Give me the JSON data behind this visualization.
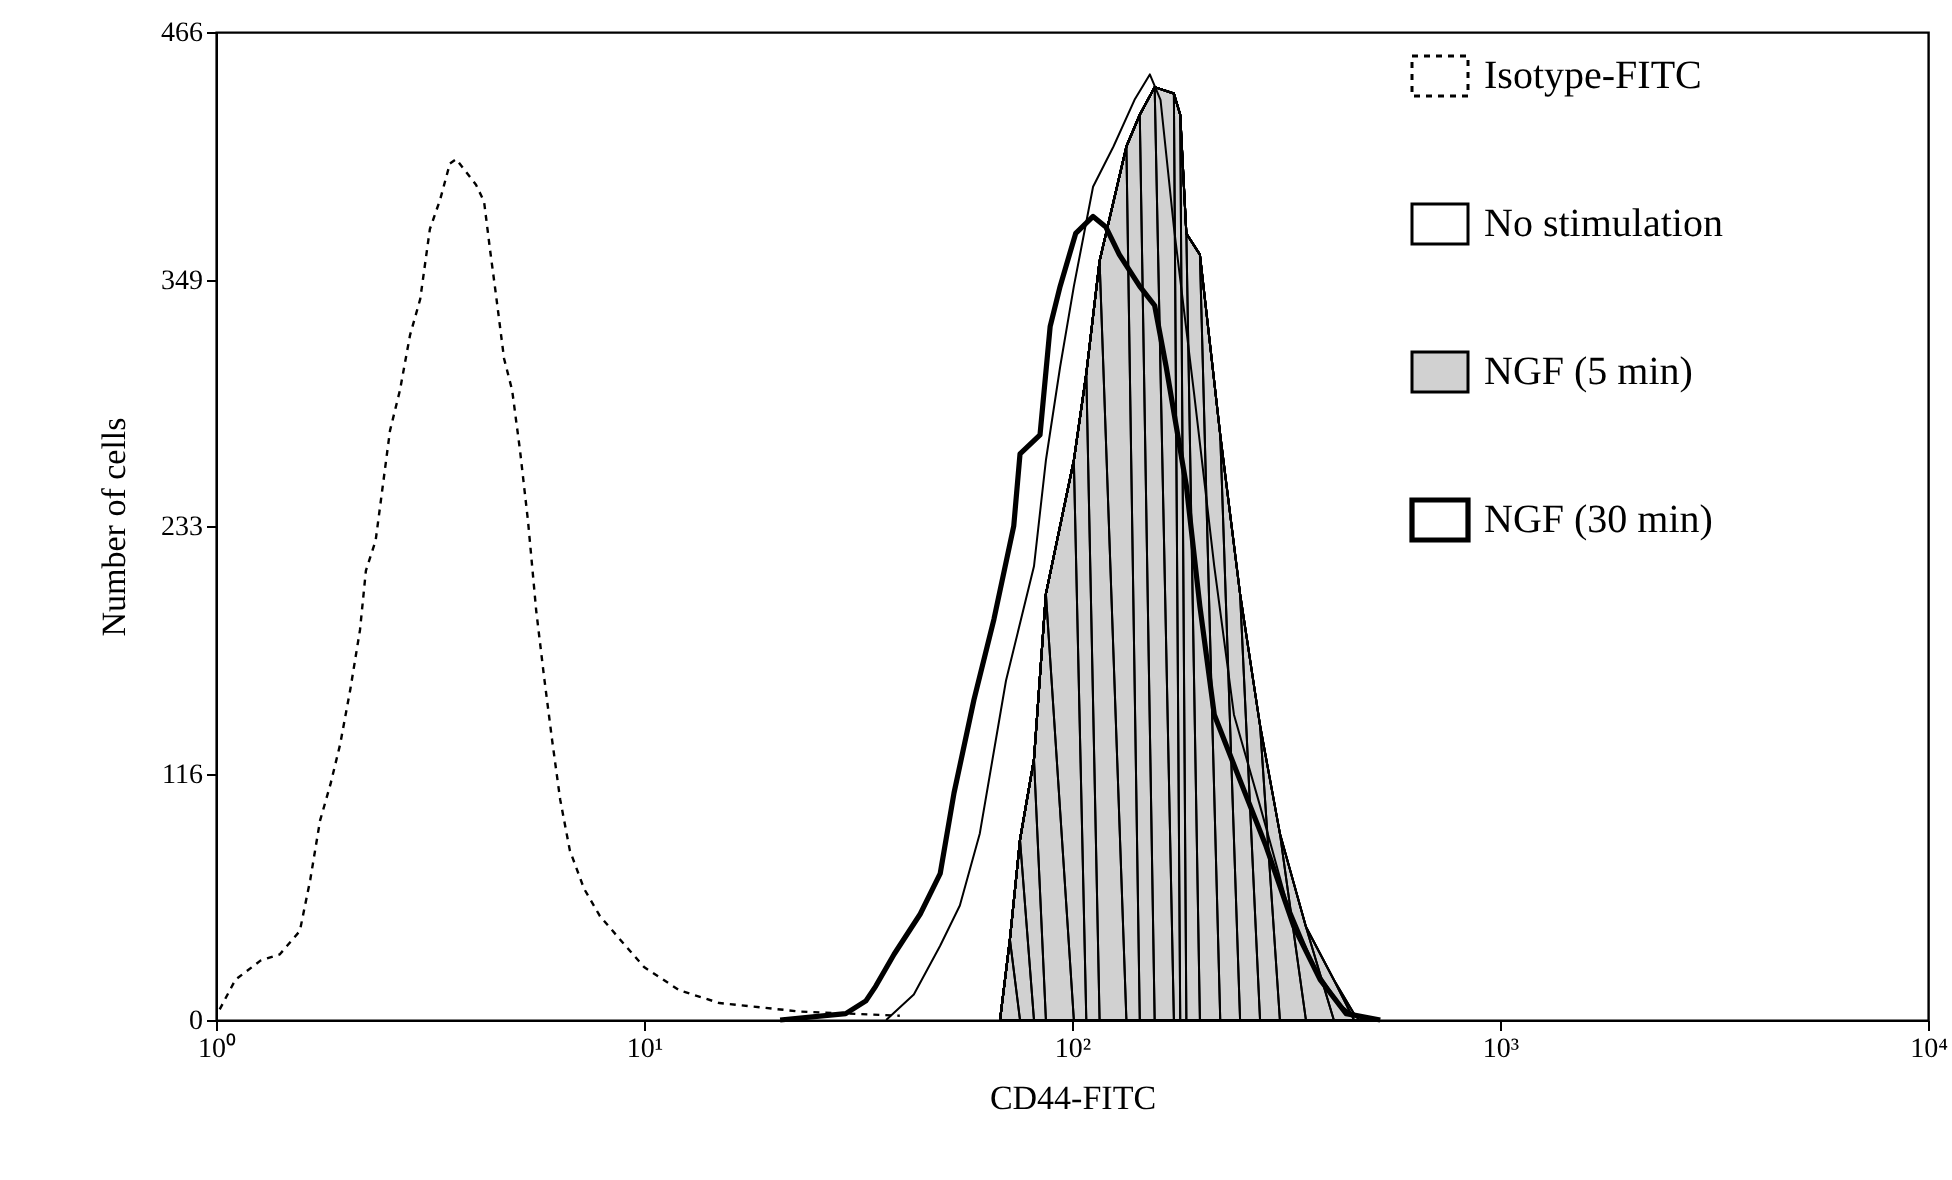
{
  "chart_data": {
    "type": "line",
    "xlabel": "CD44-FITC",
    "ylabel": "Number of cells",
    "log": "x",
    "xlim": [
      1,
      10000
    ],
    "xticks": [
      {
        "value": 1,
        "label": "10⁰"
      },
      {
        "value": 10,
        "label": "10¹"
      },
      {
        "value": 100,
        "label": "10²"
      },
      {
        "value": 1000,
        "label": "10³"
      },
      {
        "value": 10000,
        "label": "10⁴"
      }
    ],
    "ylim": [
      0,
      466
    ],
    "yticks": [
      0,
      116,
      233,
      349,
      466
    ],
    "grid": false,
    "legend": "top right",
    "series": [
      {
        "name": "Isotype-FITC",
        "color": "#000000",
        "line_style": "dotted",
        "x": [
          1.02,
          1.11,
          1.27,
          1.41,
          1.57,
          1.66,
          1.75,
          1.85,
          1.95,
          2.06,
          2.17,
          2.24,
          2.36,
          2.55,
          2.69,
          2.84,
          3.0,
          3.16,
          3.34,
          3.52,
          3.64,
          3.84,
          4.05,
          4.23,
          4.37,
          4.51,
          4.71,
          4.92,
          5.13,
          5.36,
          5.6,
          5.84,
          6.1,
          6.37,
          6.71,
          7.24,
          7.89,
          8.79,
          10,
          12.1,
          15.0,
          23.1,
          39.6
        ],
        "values": [
          5,
          19,
          28,
          31,
          42,
          66,
          94,
          111,
          130,
          156,
          184,
          212,
          226,
          278,
          297,
          323,
          340,
          373,
          387,
          404,
          406,
          400,
          394,
          386,
          363,
          342,
          312,
          297,
          269,
          235,
          193,
          162,
          132,
          104,
          80,
          62,
          49,
          38,
          25,
          14,
          8,
          4,
          2
        ]
      },
      {
        "name": "No stimulation",
        "color": "#000000",
        "line_style": "solid",
        "x": [
          36.8,
          42.7,
          49.2,
          54.7,
          60.9,
          70.1,
          81.5,
          86.9,
          93.8,
          101,
          112,
          125,
          140,
          152,
          161,
          173,
          193,
          215,
          239,
          275,
          316,
          368,
          423,
          471
        ],
        "values": [
          0,
          12,
          35,
          54,
          88,
          160,
          214,
          264,
          308,
          346,
          393,
          412,
          434,
          446,
          434,
          374,
          295,
          214,
          144,
          101,
          57,
          25,
          7,
          0
        ]
      },
      {
        "name": "NGF (5 min)",
        "color": "#000000",
        "type": "area",
        "line_style": "solid",
        "x": [
          67.9,
          71.6,
          75.6,
          81.5,
          86.9,
          101,
          108,
          116,
          134,
          144,
          156,
          173,
          179,
          185,
          199,
          222,
          247,
          275,
          306,
          352,
          409,
          456,
          486
        ],
        "values": [
          0,
          38,
          85,
          123,
          201,
          264,
          305,
          358,
          412,
          427,
          440,
          437,
          427,
          371,
          361,
          276,
          201,
          139,
          88,
          44,
          19,
          3,
          0
        ]
      },
      {
        "name": "NGF (30 min)",
        "color": "#000000",
        "line_style": "solid",
        "x": [
          20.8,
          29.6,
          33.0,
          34.8,
          38.4,
          44.2,
          49.2,
          53.0,
          59.0,
          65.7,
          73.1,
          75.6,
          84.2,
          88.9,
          93.8,
          102,
          112,
          120,
          129,
          144,
          156,
          166,
          185,
          199,
          215,
          247,
          284,
          330,
          380,
          437,
          525
        ],
        "values": [
          0,
          3,
          9,
          16,
          31,
          50,
          69,
          107,
          151,
          189,
          233,
          267,
          276,
          327,
          346,
          371,
          379,
          374,
          361,
          346,
          337,
          308,
          252,
          195,
          144,
          113,
          82,
          44,
          19,
          3,
          0
        ]
      }
    ]
  }
}
